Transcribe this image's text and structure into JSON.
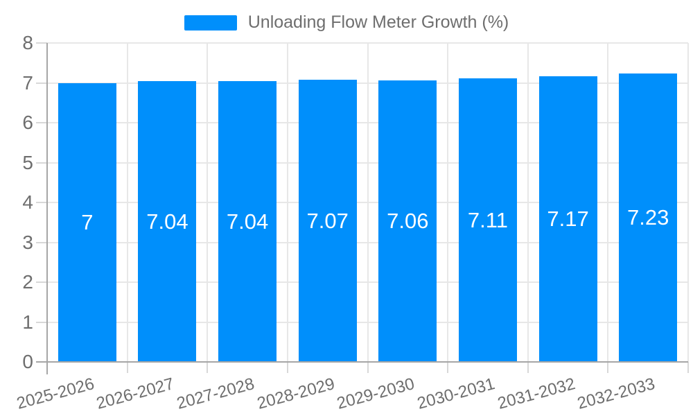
{
  "legend": {
    "label": "Unloading Flow Meter Growth (%)",
    "swatch_color": "#008FFB"
  },
  "chart_data": {
    "type": "bar",
    "title": "Unloading Flow Meter Growth (%)",
    "categories": [
      "2025-2026",
      "2026-2027",
      "2027-2028",
      "2028-2029",
      "2029-2030",
      "2030-2031",
      "2031-2032",
      "2032-2033"
    ],
    "series": [
      {
        "name": "Unloading Flow Meter Growth (%)",
        "values": [
          7,
          7.04,
          7.04,
          7.07,
          7.06,
          7.11,
          7.17,
          7.23
        ]
      }
    ],
    "value_labels": [
      "7",
      "7.04",
      "7.04",
      "7.07",
      "7.06",
      "7.11",
      "7.17",
      "7.23"
    ],
    "xlabel": "",
    "ylabel": "",
    "ylim": [
      0,
      8
    ],
    "yticks": [
      0,
      1,
      2,
      3,
      4,
      5,
      6,
      7,
      8
    ],
    "grid": true,
    "legend_position": "top",
    "x_label_rotation_deg": -15,
    "colors": {
      "bar": "#008FFB",
      "value_label": "#ffffff",
      "axis_text": "#6e6e6e",
      "grid": "#e7e7e7",
      "tick": "#d8d8d8",
      "axis_line": "#a6a6a6"
    }
  }
}
